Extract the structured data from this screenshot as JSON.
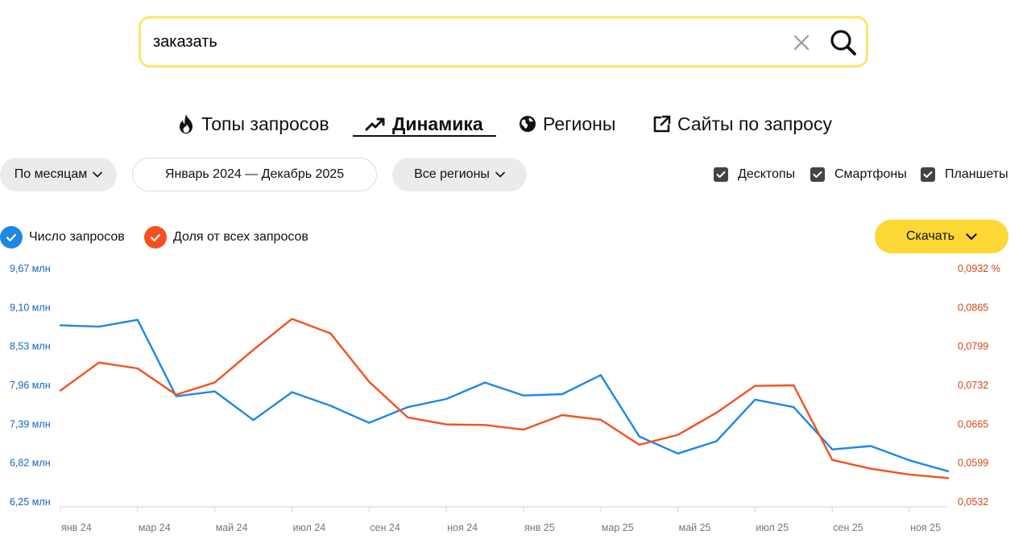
{
  "search": {
    "query": "заказать"
  },
  "tabs": [
    {
      "label": "Топы запросов",
      "icon": "fire-icon"
    },
    {
      "label": "Динамика",
      "icon": "trend-up-icon",
      "active": true
    },
    {
      "label": "Регионы",
      "icon": "globe-icon"
    },
    {
      "label": "Сайты по запросу",
      "icon": "external-link-icon"
    }
  ],
  "filters": {
    "group_by": "По месяцам",
    "period": "Январь 2024 — Декабрь 2025",
    "regions": "Все регионы"
  },
  "devices": [
    {
      "label": "Десктопы",
      "checked": true
    },
    {
      "label": "Смартфоны",
      "checked": true
    },
    {
      "label": "Планшеты",
      "checked": true
    }
  ],
  "legend": [
    {
      "label": "Число запросов",
      "color": "#1e88e5",
      "checked": true
    },
    {
      "label": "Доля от всех запросов",
      "color": "#f4511e",
      "checked": true
    }
  ],
  "download": {
    "label": "Скачать"
  },
  "chart_data": {
    "type": "line",
    "x_tick_labels": [
      "янв 24",
      "мар 24",
      "май 24",
      "июл 24",
      "сен 24",
      "ноя 24",
      "янв 25",
      "мар 25",
      "май 25",
      "июл 25",
      "сен 25",
      "ноя 25"
    ],
    "left_axis": {
      "ticks": [
        "9,67 млн",
        "9,10 млн",
        "8,53 млн",
        "7,96 млн",
        "7,39 млн",
        "6,82 млн",
        "6,25 млн"
      ],
      "range": [
        6.25,
        9.67
      ],
      "color": "#1565c0"
    },
    "right_axis": {
      "ticks": [
        "0,0932 %",
        "0,0865",
        "0,0799",
        "0,0732",
        "0,0665",
        "0,0599",
        "0,0532"
      ],
      "range": [
        0.0532,
        0.0932
      ],
      "color": "#d84315"
    },
    "grid": false,
    "series": [
      {
        "name": "Число запросов",
        "axis": "left",
        "color": "#1e88e5",
        "values": [
          8.84,
          8.82,
          8.92,
          7.8,
          7.87,
          7.45,
          7.86,
          7.66,
          7.41,
          7.64,
          7.76,
          8.0,
          7.81,
          7.83,
          8.11,
          7.21,
          6.96,
          7.14,
          7.75,
          7.64,
          7.02,
          7.07,
          6.86,
          6.7
        ]
      },
      {
        "name": "Доля от всех запросов",
        "axis": "right",
        "color": "#f4511e",
        "values": [
          0.0723,
          0.0771,
          0.0761,
          0.0716,
          0.0737,
          0.0793,
          0.0846,
          0.0821,
          0.0738,
          0.0677,
          0.0665,
          0.0664,
          0.0656,
          0.0681,
          0.0673,
          0.063,
          0.0647,
          0.0685,
          0.0731,
          0.0732,
          0.0604,
          0.0589,
          0.0579,
          0.0573
        ]
      }
    ]
  }
}
